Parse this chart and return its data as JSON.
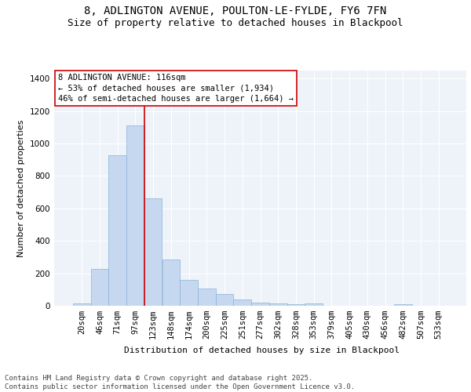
{
  "title_line1": "8, ADLINGTON AVENUE, POULTON-LE-FYLDE, FY6 7FN",
  "title_line2": "Size of property relative to detached houses in Blackpool",
  "xlabel": "Distribution of detached houses by size in Blackpool",
  "ylabel": "Number of detached properties",
  "categories": [
    "20sqm",
    "46sqm",
    "71sqm",
    "97sqm",
    "123sqm",
    "148sqm",
    "174sqm",
    "200sqm",
    "225sqm",
    "251sqm",
    "277sqm",
    "302sqm",
    "328sqm",
    "353sqm",
    "379sqm",
    "405sqm",
    "430sqm",
    "456sqm",
    "482sqm",
    "507sqm",
    "533sqm"
  ],
  "values": [
    15,
    225,
    930,
    1110,
    660,
    285,
    160,
    105,
    72,
    40,
    20,
    15,
    10,
    15,
    0,
    0,
    0,
    0,
    10,
    0,
    0
  ],
  "bar_color": "#c5d8f0",
  "bar_edge_color": "#8ab4d8",
  "background_color": "#eef2f9",
  "grid_color": "#ffffff",
  "vline_color": "#cc0000",
  "vline_x_index": 3.5,
  "annotation_text": "8 ADLINGTON AVENUE: 116sqm\n← 53% of detached houses are smaller (1,934)\n46% of semi-detached houses are larger (1,664) →",
  "annotation_box_facecolor": "#ffffff",
  "annotation_box_edgecolor": "#cc0000",
  "footnote": "Contains HM Land Registry data © Crown copyright and database right 2025.\nContains public sector information licensed under the Open Government Licence v3.0.",
  "ylim": [
    0,
    1450
  ],
  "yticks": [
    0,
    200,
    400,
    600,
    800,
    1000,
    1200,
    1400
  ],
  "fig_facecolor": "#ffffff",
  "title_fontsize": 10,
  "subtitle_fontsize": 9,
  "axis_label_fontsize": 8,
  "tick_fontsize": 7.5,
  "annotation_fontsize": 7.5,
  "footnote_fontsize": 6.5
}
